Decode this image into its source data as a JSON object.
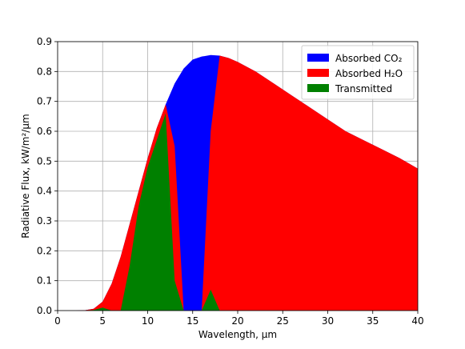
{
  "chart_data": {
    "type": "area",
    "title": "",
    "xlabel": "Wavelength, μm",
    "ylabel": "Radiative Flux, kW/m²/μm",
    "xlim": [
      0,
      40
    ],
    "ylim": [
      0,
      0.9
    ],
    "x_ticks": [
      0,
      5,
      10,
      15,
      20,
      25,
      30,
      35,
      40
    ],
    "y_ticks": [
      0.0,
      0.1,
      0.2,
      0.3,
      0.4,
      0.5,
      0.6,
      0.7,
      0.8,
      0.9
    ],
    "grid": true,
    "legend_position": "top-right",
    "x": [
      0,
      1,
      2,
      3,
      4,
      5,
      6,
      7,
      8,
      9,
      10,
      11,
      12,
      13,
      14,
      15,
      16,
      17,
      18,
      19,
      20,
      22,
      24,
      26,
      28,
      30,
      32,
      34,
      36,
      38,
      40
    ],
    "series": [
      {
        "name": "Absorbed CO₂",
        "color": "#0000ff",
        "values": [
          0,
          0,
          0,
          0.001,
          0.006,
          0.03,
          0.09,
          0.18,
          0.29,
          0.4,
          0.51,
          0.61,
          0.69,
          0.76,
          0.81,
          0.84,
          0.85,
          0.855,
          0.853,
          0.845,
          0.832,
          0.8,
          0.76,
          0.72,
          0.68,
          0.64,
          0.6,
          0.57,
          0.54,
          0.51,
          0.475
        ]
      },
      {
        "name": "Absorbed H₂O",
        "color": "#ff0000",
        "values": [
          0,
          0,
          0,
          0.001,
          0.006,
          0.03,
          0.09,
          0.18,
          0.29,
          0.4,
          0.51,
          0.61,
          0.69,
          0.55,
          0.0,
          0.0,
          0.0,
          0.6,
          0.853,
          0.845,
          0.832,
          0.8,
          0.76,
          0.72,
          0.68,
          0.64,
          0.6,
          0.57,
          0.54,
          0.51,
          0.475
        ]
      },
      {
        "name": "Transmitted",
        "color": "#008000",
        "values": [
          0,
          0,
          0,
          0,
          0.002,
          0.01,
          0.0,
          0.0,
          0.15,
          0.35,
          0.48,
          0.57,
          0.66,
          0.1,
          0.0,
          0.0,
          0.0,
          0.07,
          0.0,
          0.0,
          0.0,
          0,
          0,
          0,
          0,
          0,
          0,
          0,
          0,
          0,
          0
        ]
      }
    ]
  }
}
